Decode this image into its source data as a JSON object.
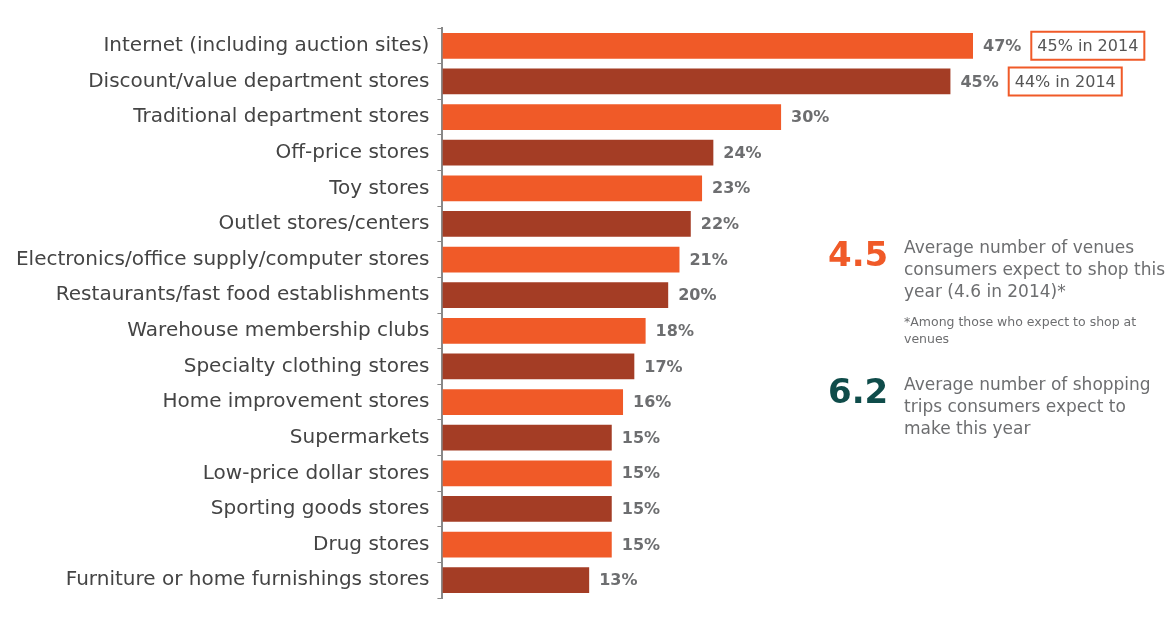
{
  "chart_data": {
    "type": "bar",
    "orientation": "horizontal",
    "categories": [
      "Internet (including auction sites)",
      "Discount/value department stores",
      "Traditional department stores",
      "Off-price stores",
      "Toy stores",
      "Outlet stores/centers",
      "Electronics/office supply/computer stores",
      "Restaurants/fast food establishments",
      "Warehouse membership clubs",
      "Specialty clothing stores",
      "Home improvement stores",
      "Supermarkets",
      "Low-price dollar stores",
      "Sporting goods stores",
      "Drug stores",
      "Furniture or home furnishings stores"
    ],
    "values": [
      47,
      45,
      30,
      24,
      23,
      22,
      21,
      20,
      18,
      17,
      16,
      15,
      15,
      15,
      15,
      13
    ],
    "value_labels": [
      "47%",
      "45%",
      "30%",
      "24%",
      "23%",
      "22%",
      "21%",
      "20%",
      "18%",
      "17%",
      "16%",
      "15%",
      "15%",
      "15%",
      "15%",
      "13%"
    ],
    "colors": [
      "#f05a28",
      "#a43d25",
      "#f05a28",
      "#a43d25",
      "#f05a28",
      "#a43d25",
      "#f05a28",
      "#a43d25",
      "#f05a28",
      "#a43d25",
      "#f05a28",
      "#a43d25",
      "#f05a28",
      "#a43d25",
      "#f05a28",
      "#a43d25"
    ],
    "grid": false,
    "legend": false,
    "annotations": [
      "45% in 2014",
      "44% in 2014",
      "4.5",
      "Average number of venues consumers expect to shop this year (4.6 in 2014)*",
      "*Among those who expect to shop at venues",
      "6.2",
      "Average number of shopping trips consumers expect to make this year"
    ]
  }
}
